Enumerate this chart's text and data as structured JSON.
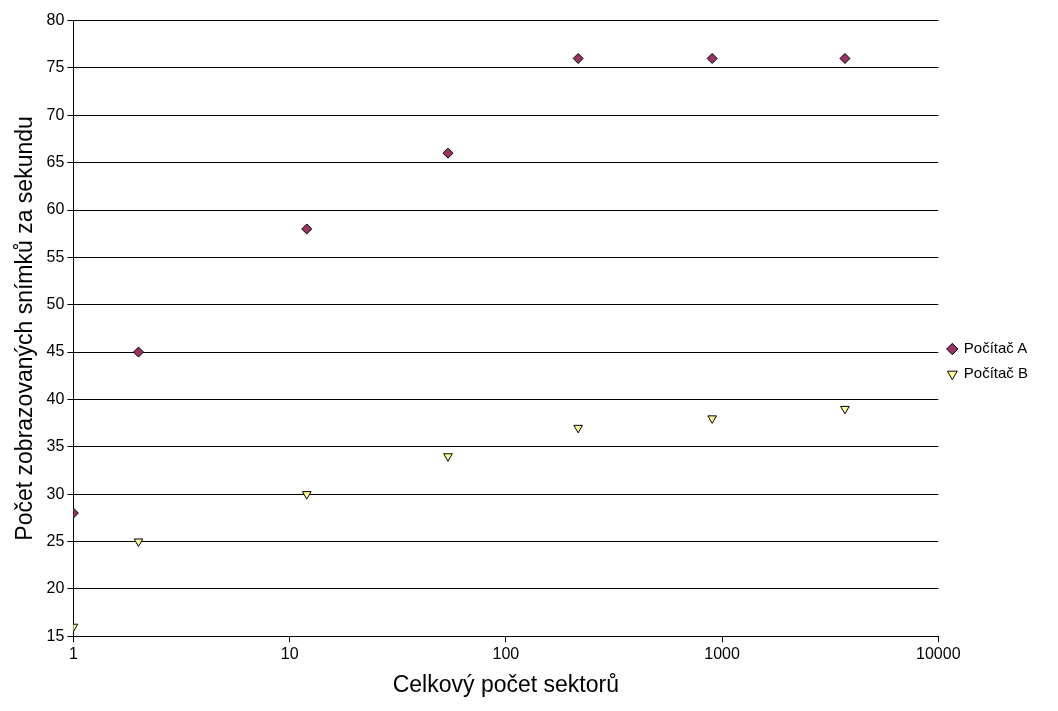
{
  "chart_data": {
    "type": "scatter",
    "xlabel": "Celkový počet sektorů",
    "ylabel": "Počet zobrazovaných snímků za sekundu",
    "x": [
      1,
      2,
      12,
      54,
      216,
      900,
      3700
    ],
    "series": [
      {
        "name": "Počítač A",
        "color": "#993366",
        "marker": "diamond",
        "values": [
          28,
          45,
          58,
          66,
          76,
          76,
          76
        ]
      },
      {
        "name": "Počítač B",
        "color": "#ffff99",
        "marker": "triangle",
        "values": [
          16,
          25,
          30,
          34,
          37,
          38,
          39
        ]
      }
    ],
    "log": "x",
    "xlim": [
      1,
      10000
    ],
    "xticks": [
      1,
      10,
      100,
      1000,
      10000
    ],
    "ylim": [
      15,
      80
    ],
    "yticks": [
      15,
      20,
      25,
      30,
      35,
      40,
      45,
      50,
      55,
      60,
      65,
      70,
      75,
      80
    ],
    "grid": "y",
    "legend": "right"
  }
}
